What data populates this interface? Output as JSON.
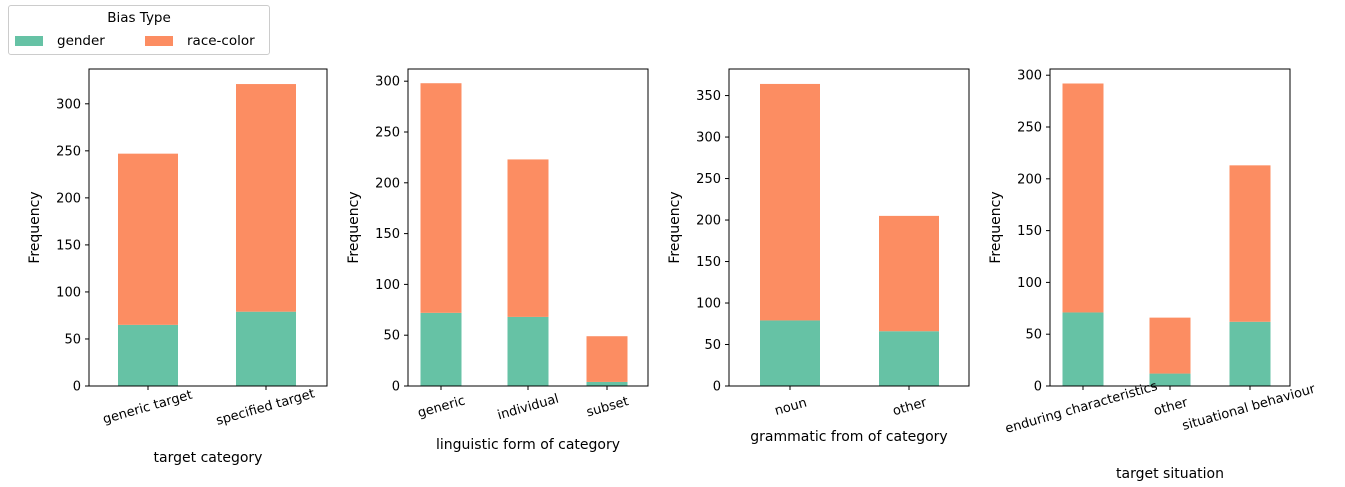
{
  "legend": {
    "title": "Bias Type",
    "items": [
      {
        "label": "gender",
        "color": "#66c2a5"
      },
      {
        "label": "race-color",
        "color": "#fc8d62"
      }
    ]
  },
  "chart_data": [
    {
      "type": "bar",
      "stacked": true,
      "categories": [
        "generic target",
        "specified target"
      ],
      "series": [
        {
          "name": "gender",
          "color": "#66c2a5",
          "values": [
            65,
            79
          ]
        },
        {
          "name": "race-color",
          "color": "#fc8d62",
          "values": [
            182,
            242
          ]
        }
      ],
      "xlabel": "target category",
      "ylabel": "Frequency",
      "ylim": [
        0,
        337
      ],
      "yticks": [
        0,
        50,
        100,
        150,
        200,
        250,
        300
      ]
    },
    {
      "type": "bar",
      "stacked": true,
      "categories": [
        "generic",
        "individual",
        "subset"
      ],
      "series": [
        {
          "name": "gender",
          "color": "#66c2a5",
          "values": [
            72,
            68,
            4
          ]
        },
        {
          "name": "race-color",
          "color": "#fc8d62",
          "values": [
            226,
            155,
            45
          ]
        }
      ],
      "xlabel": "linguistic form of category",
      "ylabel": "Frequency",
      "ylim": [
        0,
        312
      ],
      "yticks": [
        0,
        50,
        100,
        150,
        200,
        250,
        300
      ]
    },
    {
      "type": "bar",
      "stacked": true,
      "categories": [
        "noun",
        "other"
      ],
      "series": [
        {
          "name": "gender",
          "color": "#66c2a5",
          "values": [
            79,
            66
          ]
        },
        {
          "name": "race-color",
          "color": "#fc8d62",
          "values": [
            285,
            139
          ]
        }
      ],
      "xlabel": "grammatic from of category",
      "ylabel": "Frequency",
      "ylim": [
        0,
        382
      ],
      "yticks": [
        0,
        50,
        100,
        150,
        200,
        250,
        300,
        350
      ]
    },
    {
      "type": "bar",
      "stacked": true,
      "categories": [
        "enduring characteristics",
        "other",
        "situational behaviour"
      ],
      "series": [
        {
          "name": "gender",
          "color": "#66c2a5",
          "values": [
            71,
            12,
            62
          ]
        },
        {
          "name": "race-color",
          "color": "#fc8d62",
          "values": [
            221,
            54,
            151
          ]
        }
      ],
      "xlabel": "target situation",
      "ylabel": "Frequency",
      "ylim": [
        0,
        306
      ],
      "yticks": [
        0,
        50,
        100,
        150,
        200,
        250,
        300
      ]
    }
  ]
}
